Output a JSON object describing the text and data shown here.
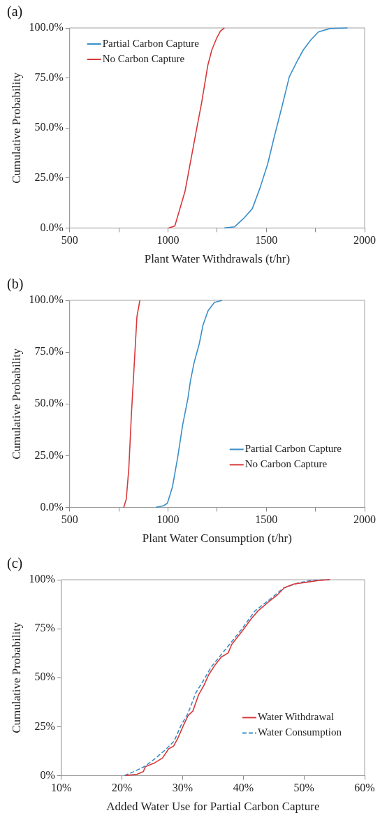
{
  "chart_data": [
    {
      "type": "line",
      "title": "(a)",
      "xlabel": "Plant Water Withdrawals (t/hr)",
      "ylabel": "Cumulative Probability",
      "xlim": [
        500,
        2000
      ],
      "xticks": [
        500,
        {
          "value": 750,
          "label": null
        },
        1000,
        {
          "value": 1250,
          "label": null
        },
        1500,
        {
          "value": 1750,
          "label": null
        },
        2000
      ],
      "ylim": [
        0,
        100
      ],
      "yticks": [
        {
          "value": 0,
          "label": "0.0%"
        },
        {
          "value": 25,
          "label": "25.0%"
        },
        {
          "value": 50,
          "label": "50.0%"
        },
        {
          "value": 75,
          "label": "75.0%"
        },
        {
          "value": 100,
          "label": "100.0%"
        }
      ],
      "legend": "top left",
      "marker": "none",
      "grid": false,
      "series": [
        {
          "name": "Partial Carbon Capture",
          "color": "#3b8fc8",
          "x": [
            1287,
            1339,
            1384,
            1429,
            1468,
            1507,
            1539,
            1578,
            1617,
            1655,
            1688,
            1726,
            1765,
            1823,
            1913
          ],
          "values": [
            0,
            0.6,
            4.7,
            9.7,
            20,
            32,
            45,
            60,
            75.6,
            83,
            89,
            94,
            98,
            99.7,
            100
          ]
        },
        {
          "name": "No Carbon Capture",
          "color": "#d9383a",
          "x": [
            1003,
            1035,
            1087,
            1139,
            1171,
            1203,
            1223,
            1248,
            1267,
            1287
          ],
          "values": [
            0,
            1,
            18.5,
            46,
            62.6,
            81.5,
            89,
            95,
            98.5,
            100
          ]
        }
      ]
    },
    {
      "type": "line",
      "title": "(b)",
      "xlabel": "Plant Water Consumption (t/hr)",
      "ylabel": "Cumulative Probability",
      "xlim": [
        500,
        2000
      ],
      "xticks": [
        500,
        {
          "value": 750,
          "label": null
        },
        1000,
        {
          "value": 1250,
          "label": null
        },
        1500,
        {
          "value": 1750,
          "label": null
        },
        2000
      ],
      "ylim": [
        0,
        100
      ],
      "yticks": [
        {
          "value": 0,
          "label": "0.0%"
        },
        {
          "value": 25,
          "label": "25.0%"
        },
        {
          "value": 50,
          "label": "50.0%"
        },
        {
          "value": 75,
          "label": "75.0%"
        },
        {
          "value": 100,
          "label": "100.0%"
        }
      ],
      "legend": "bottom right",
      "marker": "none",
      "grid": false,
      "series": [
        {
          "name": "Partial Carbon Capture",
          "color": "#3b8fc8",
          "x": [
            939,
            978,
            997,
            1023,
            1049,
            1075,
            1101,
            1114,
            1133,
            1159,
            1178,
            1204,
            1236,
            1275
          ],
          "values": [
            0,
            0.8,
            2,
            10,
            24,
            40,
            52.5,
            61,
            70,
            79,
            88,
            95,
            99,
            100
          ]
        },
        {
          "name": "No Carbon Capture",
          "color": "#d9383a",
          "x": [
            775,
            788,
            801,
            814,
            829,
            842,
            857
          ],
          "values": [
            0,
            4,
            19,
            45,
            70,
            92,
            100
          ]
        }
      ]
    },
    {
      "type": "line",
      "title": "(c)",
      "xlabel": "Added Water Use for Partial Carbon Capture",
      "ylabel": "Cumulative Probability",
      "xlim": [
        10,
        60
      ],
      "xticks": [
        {
          "value": 10,
          "label": "10%"
        },
        {
          "value": 20,
          "label": "20%"
        },
        {
          "value": 30,
          "label": "30%"
        },
        {
          "value": 40,
          "label": "40%"
        },
        {
          "value": 50,
          "label": "50%"
        },
        {
          "value": 60,
          "label": "60%"
        }
      ],
      "ylim": [
        0,
        100
      ],
      "yticks": [
        {
          "value": 0,
          "label": "0%"
        },
        {
          "value": 25,
          "label": "25%"
        },
        {
          "value": 50,
          "label": "50%"
        },
        {
          "value": 75,
          "label": "75%"
        },
        {
          "value": 100,
          "label": "100%"
        }
      ],
      "legend": "bottom right",
      "marker": "none",
      "grid": false,
      "series": [
        {
          "name": "Water Withdrawal",
          "color": "#d9383a",
          "line_style": "solid",
          "x": [
            20.6,
            22.5,
            23.5,
            23.9,
            25.4,
            26.7,
            27.7,
            28.5,
            29.2,
            30.1,
            30.9,
            31.7,
            32.6,
            33.5,
            34.3,
            35.4,
            36.4,
            37.5,
            38.1,
            39.8,
            41.3,
            42.4,
            44.1,
            45.7,
            46.8,
            48.3,
            50.4,
            52.5,
            54.2
          ],
          "values": [
            0,
            0.7,
            2,
            4.6,
            6.5,
            9,
            13.7,
            15,
            19,
            25.4,
            30.6,
            33,
            41,
            46,
            51.5,
            56.7,
            60.6,
            62.6,
            67,
            73.7,
            80,
            84,
            88.5,
            92.5,
            96,
            97.8,
            98.7,
            99.7,
            100
          ]
        },
        {
          "name": "Water Consumption",
          "color": "#3b8fc8",
          "line_style": "dashed",
          "x": [
            20.4,
            22.1,
            23.7,
            25.4,
            27.1,
            28.6,
            29.7,
            30.9,
            32.2,
            33.5,
            34.7,
            36.4,
            38.1,
            39.8,
            41.9,
            44.1,
            46.6,
            49.1,
            51.3,
            54.6
          ],
          "values": [
            0,
            2.2,
            4.6,
            8.5,
            13,
            17.6,
            25.4,
            31.9,
            42.4,
            48.9,
            55.4,
            61.9,
            68.4,
            75,
            84,
            89.3,
            95.7,
            98.4,
            99.7,
            100
          ]
        }
      ]
    }
  ]
}
